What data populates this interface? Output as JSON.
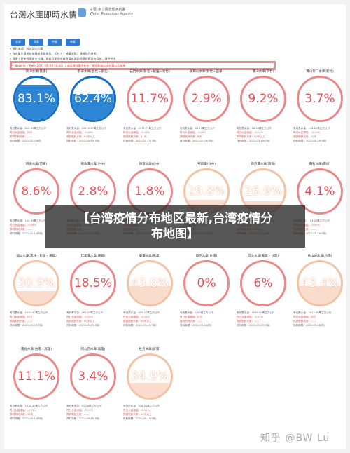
{
  "header": {
    "title": "台灣水庫即時水情",
    "subtitle_line1": "主要 水 | 經濟部水利署",
    "subtitle_line2": "Water Resources Agency"
  },
  "tabs": [
    "全部",
    "北區",
    "中區",
    "南區"
  ],
  "notes": [
    {
      "text": "• 資料來源：經濟部水利署",
      "red": false
    },
    {
      "text": "• 有效蓄水量係依據最新測量報告，扣除人工補蓄淤積，運轉操作參考。",
      "red": false
    },
    {
      "text": "• 標準 | 更新頻率每五分鐘，資料可能因水庫數值或通訊問題延遲而有誤差，僅供參考",
      "red": false
    },
    {
      "text": "• 資料時間（更新於2021-05-19 10:00）| 本站資料僅供參考，實際數據以水利署公告為準",
      "red": true
    }
  ],
  "reservoirs": [
    {
      "name": "新山水庫(基隆)",
      "pct": "83.1%",
      "level": 83.1,
      "style": "blue",
      "info": [
        "有效蓄水量：815.89萬立方公尺",
        "昨日水量總幅：持平",
        "預測剩餘天數：——",
        "資料時間：2021-05-18(昨)"
      ]
    },
    {
      "name": "翡翠水庫(台北・新北)",
      "pct": "62.4%",
      "level": 62.4,
      "style": "blue",
      "info": [
        "有效蓄水量：20949.39萬立方公尺",
        "昨日水量總幅：-0.49%",
        "預測剩餘天數：60天以上",
        "資料時間：2021-05-19(7時)"
      ]
    },
    {
      "name": "石門水庫(新北・桃園・新竹)",
      "pct": "11.7%",
      "level": 0,
      "style": "red",
      "info": [
        "有效蓄水量：2379.71萬立方公尺",
        "昨日水量總幅：-0.14%",
        "預測剩餘天數：11天",
        "資料時間：2021-05-19(7時)"
      ]
    },
    {
      "name": "永和山水庫(新竹・苗栗)",
      "pct": "2.9%",
      "level": 0,
      "style": "red",
      "info": [
        "有效蓄水量：86.57萬立方公尺",
        "昨日水量總幅：-0.08%",
        "預測剩餘天數：6天",
        "資料時間：2021-05-19(7時)"
      ]
    },
    {
      "name": "寶山水庫(新竹)",
      "pct": "9.2%",
      "level": 0,
      "style": "red",
      "info": [
        "有效蓄水量：46.34萬立方公尺",
        "昨日水量總幅：-0.14%",
        "預測剩餘天數：60天以上",
        "資料時間：2021-05-19(7時)"
      ]
    },
    {
      "name": "寶山第二水庫(新竹)",
      "pct": "3.7%",
      "level": 0,
      "style": "red",
      "info": [
        "有效蓄水量：116.83萬立方公尺",
        "昨日水量總幅：-0.11%",
        "預測剩餘天數：10天",
        "資料時間：2021-05-19(7時)"
      ]
    },
    {
      "name": "明德水庫(苗栗)",
      "pct": "8.6%",
      "level": 0,
      "style": "red",
      "info": [
        "有效蓄水量：104.89萬立方公尺",
        "昨日水量總幅：-0.09%",
        "預測剩餘天數：——",
        "資料時間：2021-05-19(7時)"
      ]
    },
    {
      "name": "鯉魚潭水庫(台中)",
      "pct": "2.8%",
      "level": 0,
      "style": "red",
      "info": [
        "有效蓄水量：103.15萬立方公尺",
        "昨日水量總幅：-0.06%",
        "預測剩餘天數：——",
        "資料時間：2021-05-19(7時)"
      ]
    },
    {
      "name": "德基水庫(台中)",
      "pct": "1.8%",
      "level": 0,
      "style": "red",
      "info": [
        "有效蓄水量：——",
        "昨日水量總幅：——",
        "預測剩餘天數：——",
        "資料時間：2021-05-19(7時)"
      ]
    },
    {
      "name": "石岡壩(台中)",
      "pct": "29.8%",
      "level": 29.8,
      "style": "peach",
      "info": [
        "有效蓄水量：80.62萬立方公尺",
        "昨日水量總幅：+1.09%",
        "預測剩餘天數：——",
        "資料時間：2021-05-19(7時)"
      ]
    },
    {
      "name": "日月潭水庫(南投)",
      "pct": "26.9%",
      "level": 26.9,
      "style": "peach",
      "info": [
        "有效蓄水量：3415.06萬立方公尺",
        "昨日水量總幅：-0.18%",
        "預測剩餘天數：60天以上",
        "資料時間：2021-05-19(7時)"
      ]
    },
    {
      "name": "霧社水庫(南投)",
      "pct": "4.1%",
      "level": 0,
      "style": "red",
      "info": [
        "有效蓄水量：154.63萬立方公尺",
        "昨日水量總幅：-0.05%",
        "預測剩餘天數：——",
        "資料時間：2021-05-19(7時)"
      ]
    },
    {
      "name": "湖山水庫(雲林・彰化・嘉義)",
      "pct": "30.9%",
      "level": 30.9,
      "style": "peach",
      "info": [
        "有效蓄水量：1520.42萬立方公尺",
        "昨日水量總幅：持平",
        "預測剩餘天數：——",
        "資料時間：2021-05-19(7時)"
      ]
    },
    {
      "name": "仁義潭水庫(嘉義)",
      "pct": "18.5%",
      "level": 0,
      "style": "red",
      "info": [
        "有效蓄水量：463.41萬立方公尺",
        "昨日水量總幅：-0.25%",
        "預測剩餘天數：60天以上",
        "資料時間：2021-05-19(7時)"
      ]
    },
    {
      "name": "蘭潭水庫(嘉義)",
      "pct": "43.6%",
      "level": 43.6,
      "style": "peach",
      "info": [
        "有效蓄水量：403.25萬立方公尺",
        "昨日水量總幅：-0.14%",
        "預測剩餘天數：60天以上",
        "資料時間：2021-05-19(7時)"
      ]
    },
    {
      "name": "白河水庫(台南)",
      "pct": "0%",
      "level": 0,
      "style": "red",
      "info": [
        "有效蓄水量：0.00萬立方公尺",
        "昨日水量總幅：持平",
        "預測剩餘天數：——",
        "資料時間：2021-05-18(昨)"
      ]
    },
    {
      "name": "曾文水庫(嘉義・台南)",
      "pct": "6%",
      "level": 0,
      "style": "red",
      "info": [
        "有效蓄水量：3041.00萬立方公尺",
        "昨日水量總幅：-0.01%",
        "預測剩餘天數：——",
        "資料時間：2021-05-19(7時)"
      ]
    },
    {
      "name": "烏山頭水庫(台南)",
      "pct": "43.4%",
      "level": 43.4,
      "style": "peach",
      "info": [
        "有效蓄水量：3413.00萬立方公尺",
        "昨日水量總幅：持平",
        "預測剩餘天數：——",
        "資料時間：2021-05-18(昨)"
      ]
    },
    {
      "name": "南化水庫(台南・高雄)",
      "pct": "11.1%",
      "level": 0,
      "style": "red",
      "info": [
        "有效蓄水量：1016.30萬立方公尺",
        "昨日水量總幅：-0.25%",
        "預測剩餘天數：22天",
        "資料時間：2021-05-19(7時)"
      ]
    },
    {
      "name": "阿公店水庫(高雄)",
      "pct": "3.4%",
      "level": 0,
      "style": "red",
      "info": [
        "有效蓄水量：51.58萬立方公尺",
        "昨日水量總幅：-0.19%",
        "預測剩餘天數：——",
        "資料時間：2021-05-19(7時)"
      ]
    },
    {
      "name": "牡丹水庫(屏東)",
      "pct": "34.9%",
      "level": 34.9,
      "style": "peach",
      "info": [
        "有效蓄水量：526.08萬立方公尺",
        "昨日水量總幅：-0.16%",
        "預測剩餘天數：60天以上",
        "資料時間：2021-05-19(7時)"
      ]
    }
  ],
  "banner": {
    "line1": "【台湾疫情分布地区最新,台湾疫情分",
    "line2": "布地图】"
  },
  "watermark": "知乎 @BW Lu"
}
